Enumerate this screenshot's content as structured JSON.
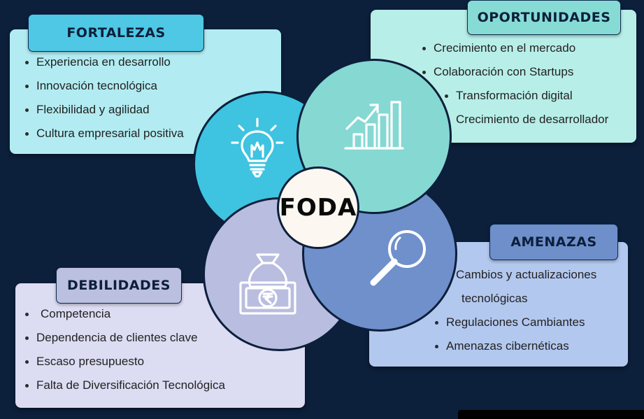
{
  "center": {
    "label": "FODA"
  },
  "fortalezas": {
    "title": "FORTALEZAS",
    "items": [
      "Experiencia en desarrollo",
      "Innovación tecnológica",
      "Flexibilidad y agilidad",
      "Cultura empresarial positiva"
    ],
    "panel_color": "#b2ecf2",
    "tab_color": "#4ec8e4",
    "circle_color": "#3ec3e0",
    "icon": "lightbulb-icon"
  },
  "oportunidades": {
    "title": "OPORTUNIDADES",
    "items": [
      "Crecimiento en el mercado",
      "Colaboración con Startups",
      "Transformación digital",
      "Crecimiento de desarrollador"
    ],
    "panel_color": "#b8eee8",
    "tab_color": "#86dcd4",
    "circle_color": "#86d8d3",
    "icon": "growth-chart-icon"
  },
  "amenazas": {
    "title": "AMENAZAS",
    "items": [
      "Cambios y actualizaciones",
      "tecnológicas",
      "Regulaciones Cambiantes",
      "Amenazas cibernéticas"
    ],
    "panel_color": "#b3c8ef",
    "tab_color": "#6e8fca",
    "circle_color": "#7090cc",
    "icon": "magnifier-icon"
  },
  "debilidades": {
    "title": "DEBILIDADES",
    "items": [
      "Competencia",
      "Dependencia de clientes clave",
      "Escaso presupuesto",
      "Falta de Diversificación Tecnológica"
    ],
    "panel_color": "#dcdcf2",
    "tab_color": "#bbbfe0",
    "circle_color": "#b9bddf",
    "icon": "money-bag-icon"
  }
}
